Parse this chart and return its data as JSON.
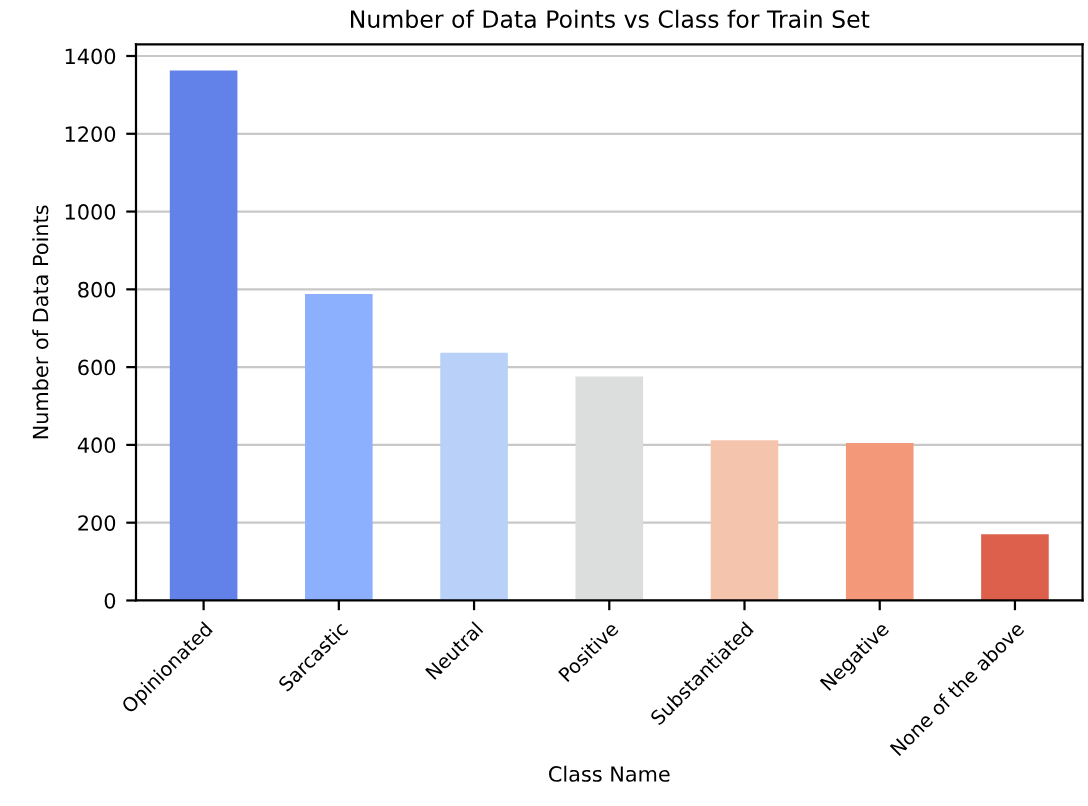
{
  "chart_data": {
    "type": "bar",
    "title": "Number of Data Points vs Class for Train Set",
    "xlabel": "Class Name",
    "ylabel": "Number of Data Points",
    "categories": [
      "Opinionated",
      "Sarcastic",
      "Neutral",
      "Positive",
      "Substantiated",
      "Negative",
      "None of the above"
    ],
    "values": [
      1363,
      788,
      637,
      576,
      412,
      405,
      170
    ],
    "colors": [
      "#6282ea",
      "#8db0fe",
      "#b9d0f9",
      "#dcdddd",
      "#f5c4ac",
      "#f39879",
      "#dd604c"
    ],
    "ylim": [
      0,
      1430
    ],
    "yticks": [
      0,
      200,
      400,
      600,
      800,
      1000,
      1200,
      1400
    ],
    "grid": "y"
  }
}
